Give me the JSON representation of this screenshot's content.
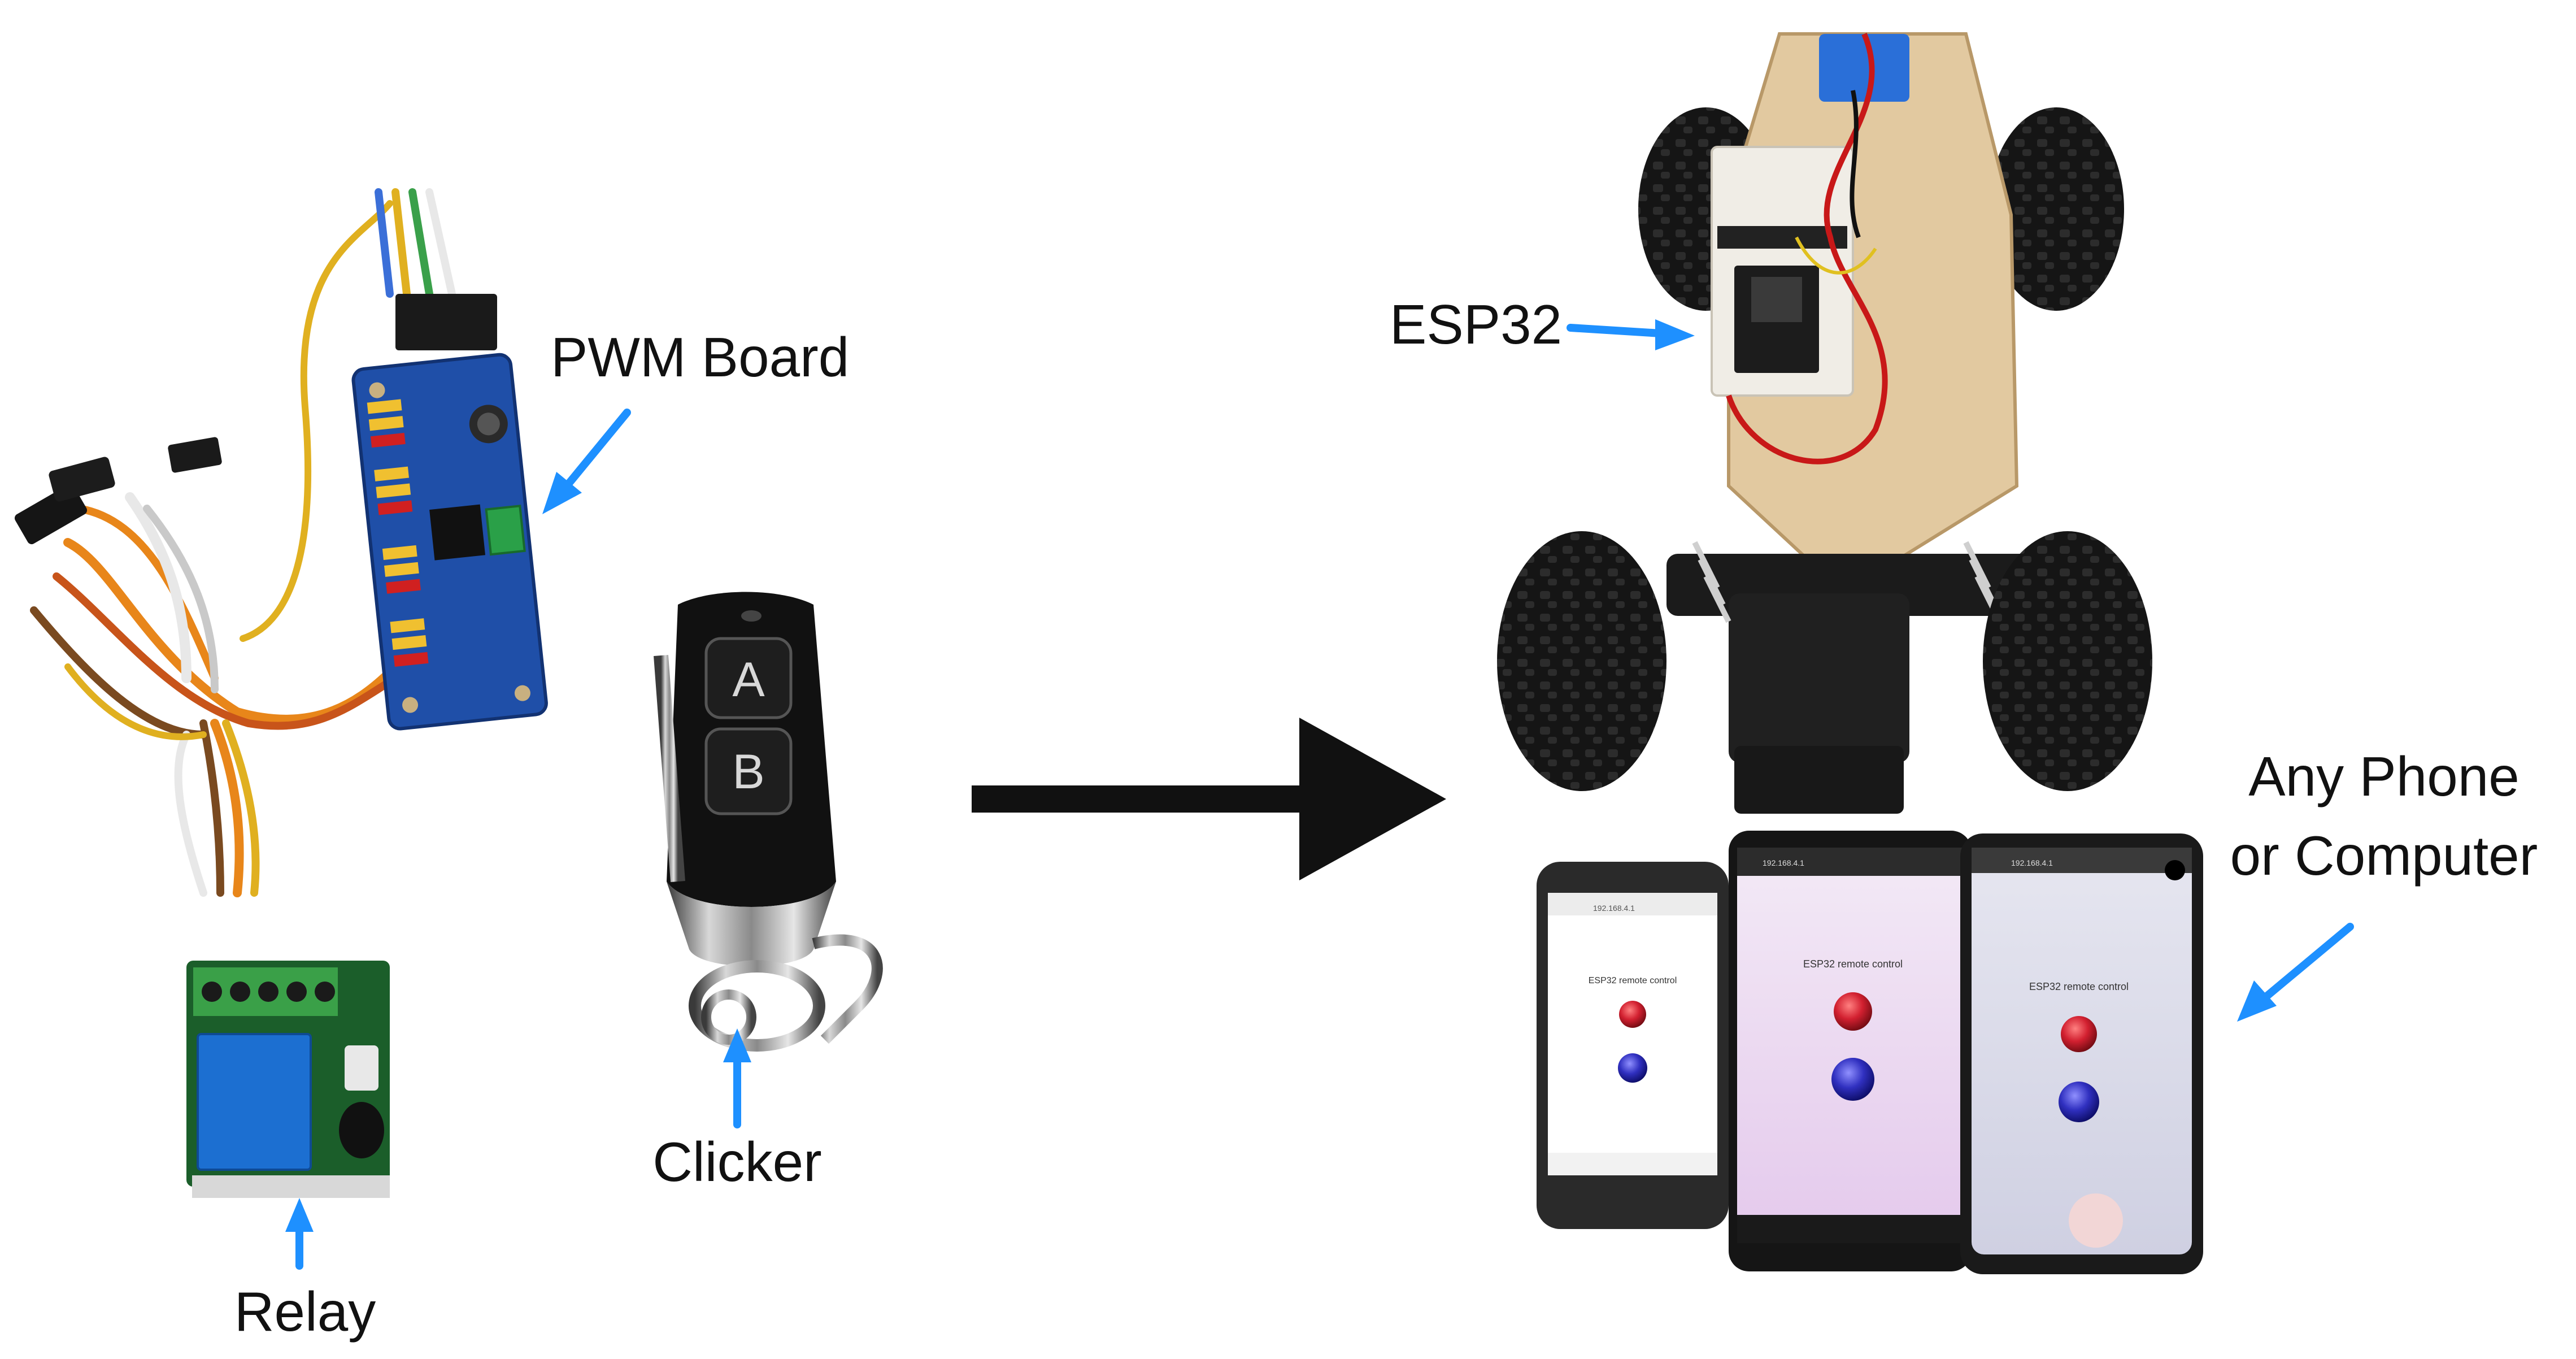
{
  "labels": {
    "pwm_board": "PWM Board",
    "clicker": "Clicker",
    "relay": "Relay",
    "esp32": "ESP32",
    "any_phone_line1": "Any Phone",
    "any_phone_line2": "or Computer"
  },
  "remote": {
    "button_a": "A",
    "button_b": "B"
  },
  "phones": [
    {
      "url": "192.168.4.1",
      "title": "ESP32 remote control"
    },
    {
      "url": "192.168.4.1",
      "title": "ESP32 remote control"
    },
    {
      "url": "192.168.4.1",
      "title": "ESP32 remote control"
    }
  ],
  "colors": {
    "arrow_blue": "#1e90ff",
    "main_arrow": "#111111",
    "pwm_board_blue": "#1f4fa8",
    "relay_blue": "#1c6fd1",
    "chassis_wood": "#e2c9a0",
    "button_red": "#d22030",
    "button_blue": "#3030c0"
  }
}
